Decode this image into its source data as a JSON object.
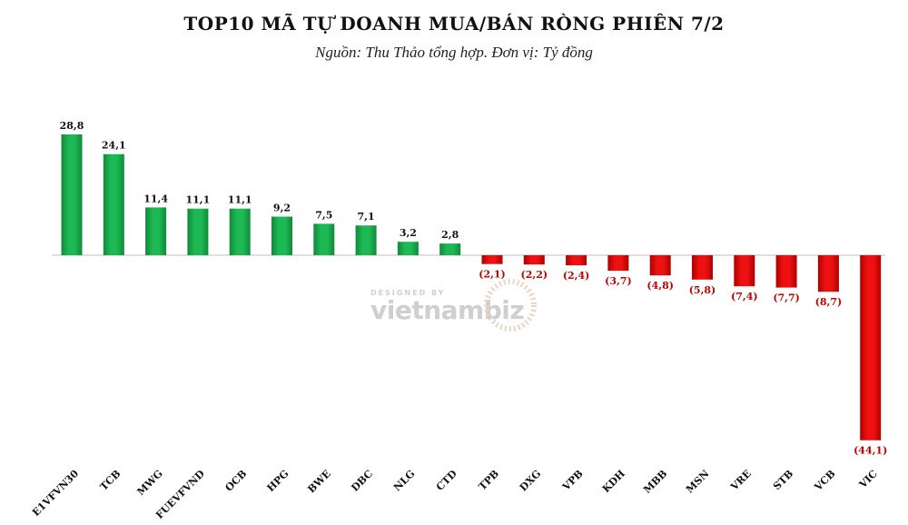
{
  "chart_data": {
    "type": "bar",
    "title": "TOP10 MÃ TỰ DOANH MUA/BÁN RÒNG PHIÊN 7/2",
    "subtitle": "Nguồn: Thu Thảo tổng hợp. Đơn vị: Tỷ đồng",
    "categories": [
      "E1VFVN30",
      "TCB",
      "MWG",
      "FUEVFVND",
      "OCB",
      "HPG",
      "BWE",
      "DBC",
      "NLG",
      "CTD",
      "TPB",
      "DXG",
      "VPB",
      "KDH",
      "MBB",
      "MSN",
      "VRE",
      "STB",
      "VCB",
      "VIC"
    ],
    "values": [
      28.8,
      24.1,
      11.4,
      11.1,
      11.1,
      9.2,
      7.5,
      7.1,
      3.2,
      2.8,
      -2.1,
      -2.2,
      -2.4,
      -3.7,
      -4.8,
      -5.8,
      -7.4,
      -7.7,
      -8.7,
      -44.1
    ],
    "value_labels": [
      "28,8",
      "24,1",
      "11,4",
      "11,1",
      "11,1",
      "9,2",
      "7,5",
      "7,1",
      "3,2",
      "2,8",
      "(2,1)",
      "(2,2)",
      "(2,4)",
      "(3,7)",
      "(4,8)",
      "(5,8)",
      "(7,4)",
      "(7,7)",
      "(8,7)",
      "(44,1)"
    ],
    "ylim": [
      -44.1,
      28.8
    ],
    "grid": false,
    "legend": "none",
    "colors": {
      "positive": "#1db954",
      "positive_dark": "#0f8a3a",
      "negative": "#ee1111",
      "negative_dark": "#b00000",
      "positive_label": "#111111",
      "negative_label": "#c00000",
      "axis": "#bfbfbf"
    }
  },
  "watermark": {
    "small_text": "DESIGNED BY",
    "brand_text": "vietnambiz"
  }
}
